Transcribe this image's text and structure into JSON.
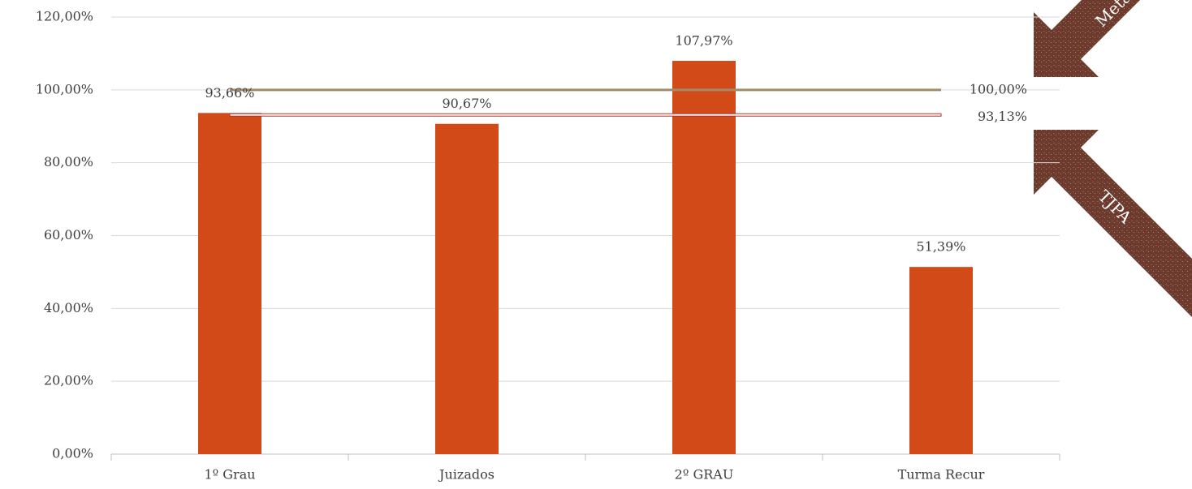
{
  "chart_data": {
    "type": "bar",
    "categories": [
      "1º Grau",
      "Juizados",
      "2º GRAU",
      "Turma Recur"
    ],
    "values": [
      93.66,
      90.67,
      107.97,
      51.39
    ],
    "value_labels": [
      "93,66%",
      "90,67%",
      "107,97%",
      "51,39%"
    ],
    "color": "#d24a17",
    "ylim": [
      0,
      120
    ],
    "yticks": [
      {
        "value": 0,
        "label": "0,00%"
      },
      {
        "value": 20,
        "label": "20,00%"
      },
      {
        "value": 40,
        "label": "40,00%"
      },
      {
        "value": 60,
        "label": "60,00%"
      },
      {
        "value": 80,
        "label": "80,00%"
      },
      {
        "value": 100,
        "label": "100,00%"
      },
      {
        "value": 120,
        "label": "120,00%"
      }
    ],
    "grid": true,
    "reference_lines": [
      {
        "value": 100,
        "label": "100,00%",
        "color": "#a38a68"
      },
      {
        "value": 93.13,
        "label": "93,13%",
        "color": "#a8322a"
      }
    ],
    "annotations": [
      "Meta",
      "TJPA"
    ]
  }
}
